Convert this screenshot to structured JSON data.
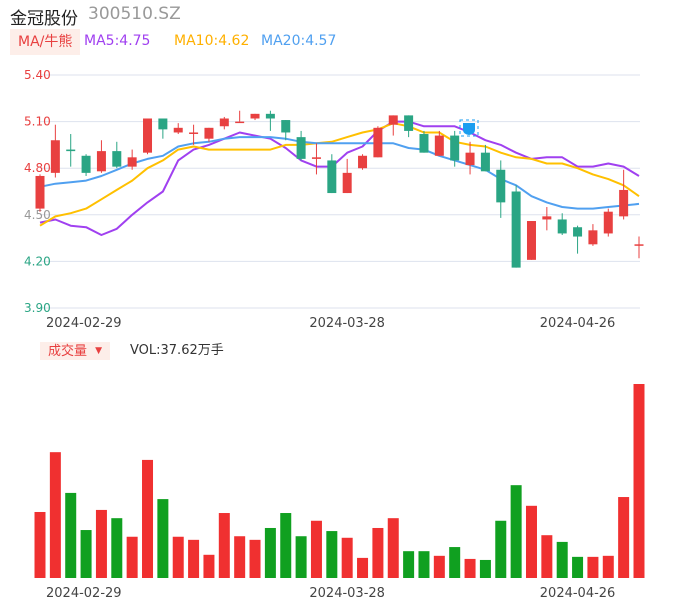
{
  "header": {
    "name": "金冠股份",
    "code": "300510.SZ"
  },
  "ma_legend": {
    "tab": "MA/牛熊",
    "ma5": "MA5:4.75",
    "ma10": "MA10:4.62",
    "ma20": "MA20:4.57"
  },
  "volume_legend": {
    "tab": "成交量",
    "dropdown_icon": "caret-down-icon",
    "vol": "VOL:37.62万手"
  },
  "colors": {
    "up": "#e84040",
    "down": "#2aa584",
    "vol_up": "#f03030",
    "vol_down": "#10a020",
    "ma5": "#a040f0",
    "ma10": "#ffc000",
    "ma20": "#50a0f0",
    "grid": "#dde2ee",
    "badge": "#1a9ef0"
  },
  "chart_data": [
    {
      "type": "candlestick",
      "y_ticks": [
        "5.40",
        "5.10",
        "4.80",
        "4.50",
        "4.20",
        "3.90"
      ],
      "ylim": [
        3.9,
        5.4
      ],
      "x_labels": [
        {
          "index": 0,
          "label": "2024-02-29"
        },
        {
          "index": 20,
          "label": "2024-03-28"
        },
        {
          "index": 35,
          "label": "2024-04-26"
        }
      ],
      "ohlc": [
        [
          4.54,
          4.76,
          4.52,
          4.75
        ],
        [
          4.77,
          5.08,
          4.74,
          4.98
        ],
        [
          4.92,
          5.02,
          4.81,
          4.91
        ],
        [
          4.88,
          4.89,
          4.75,
          4.77
        ],
        [
          4.78,
          4.98,
          4.77,
          4.91
        ],
        [
          4.91,
          4.97,
          4.8,
          4.81
        ],
        [
          4.81,
          4.92,
          4.79,
          4.87
        ],
        [
          4.9,
          5.12,
          4.89,
          5.12
        ],
        [
          5.12,
          5.12,
          4.99,
          5.05
        ],
        [
          5.03,
          5.09,
          5.02,
          5.06
        ],
        [
          5.03,
          5.08,
          4.95,
          5.03
        ],
        [
          4.99,
          5.06,
          4.97,
          5.06
        ],
        [
          5.07,
          5.13,
          5.05,
          5.12
        ],
        [
          5.1,
          5.17,
          5.1,
          5.1
        ],
        [
          5.12,
          5.15,
          5.11,
          5.15
        ],
        [
          5.15,
          5.17,
          5.04,
          5.12
        ],
        [
          5.11,
          5.11,
          4.98,
          5.03
        ],
        [
          5.0,
          5.04,
          4.85,
          4.86
        ],
        [
          4.86,
          4.96,
          4.76,
          4.87
        ],
        [
          4.85,
          4.89,
          4.64,
          4.64
        ],
        [
          4.64,
          4.86,
          4.64,
          4.77
        ],
        [
          4.8,
          4.89,
          4.79,
          4.88
        ],
        [
          4.87,
          5.07,
          4.87,
          5.06
        ],
        [
          5.08,
          5.14,
          5.01,
          5.14
        ],
        [
          5.14,
          5.14,
          5.0,
          5.04
        ],
        [
          5.02,
          5.04,
          4.9,
          4.9
        ],
        [
          4.88,
          5.04,
          4.88,
          5.01
        ],
        [
          5.01,
          5.04,
          4.81,
          4.85
        ],
        [
          4.82,
          4.97,
          4.76,
          4.9
        ],
        [
          4.9,
          4.95,
          4.78,
          4.78
        ],
        [
          4.79,
          4.85,
          4.48,
          4.58
        ],
        [
          4.65,
          4.69,
          4.16,
          4.16
        ],
        [
          4.21,
          4.46,
          4.21,
          4.46
        ],
        [
          4.47,
          4.55,
          4.4,
          4.49
        ],
        [
          4.47,
          4.51,
          4.37,
          4.38
        ],
        [
          4.42,
          4.43,
          4.25,
          4.36
        ],
        [
          4.31,
          4.44,
          4.3,
          4.4
        ],
        [
          4.38,
          4.54,
          4.36,
          4.52
        ],
        [
          4.49,
          4.79,
          4.47,
          4.66
        ],
        [
          4.31,
          4.36,
          4.22,
          4.31
        ]
      ],
      "series": [
        {
          "name": "MA5",
          "values": [
            4.45,
            4.47,
            4.43,
            4.42,
            4.37,
            4.41,
            4.5,
            4.58,
            4.65,
            4.85,
            4.92,
            4.95,
            4.99,
            5.03,
            5.01,
            4.99,
            4.93,
            4.85,
            4.81,
            4.81,
            4.9,
            4.94,
            5.04,
            5.1,
            5.1,
            5.07,
            5.07,
            5.07,
            5.03,
            4.98,
            4.95,
            4.9,
            4.86,
            4.87,
            4.87,
            4.81,
            4.81,
            4.83,
            4.81,
            4.75
          ]
        },
        {
          "name": "MA10",
          "values": [
            4.43,
            4.49,
            4.51,
            4.54,
            4.6,
            4.66,
            4.72,
            4.8,
            4.85,
            4.92,
            4.94,
            4.92,
            4.92,
            4.92,
            4.92,
            4.92,
            4.95,
            4.95,
            4.96,
            4.97,
            5.0,
            5.03,
            5.05,
            5.09,
            5.07,
            5.03,
            5.03,
            4.97,
            4.95,
            4.94,
            4.9,
            4.87,
            4.86,
            4.83,
            4.83,
            4.8,
            4.76,
            4.73,
            4.69,
            4.62
          ]
        },
        {
          "name": "MA20",
          "values": [
            4.68,
            4.7,
            4.71,
            4.72,
            4.75,
            4.79,
            4.83,
            4.86,
            4.88,
            4.94,
            4.96,
            4.97,
            4.99,
            5.0,
            5.0,
            5.0,
            4.99,
            4.97,
            4.96,
            4.96,
            4.96,
            4.96,
            4.96,
            4.96,
            4.93,
            4.92,
            4.88,
            4.85,
            4.82,
            4.79,
            4.73,
            4.69,
            4.62,
            4.58,
            4.55,
            4.54,
            4.54,
            4.55,
            4.56,
            4.57
          ]
        }
      ]
    },
    {
      "type": "bar",
      "unit": "万手",
      "values": [
        12.8,
        24.4,
        16.5,
        9.3,
        13.2,
        11.6,
        8.0,
        22.9,
        15.3,
        8.0,
        7.4,
        4.5,
        12.6,
        8.1,
        7.4,
        9.7,
        12.6,
        8.1,
        11.1,
        9.1,
        7.8,
        3.9,
        9.7,
        11.6,
        5.2,
        5.2,
        4.3,
        6.0,
        3.7,
        3.5,
        11.1,
        18.0,
        14.0,
        8.3,
        7.0,
        4.1,
        4.1,
        4.3,
        15.7,
        37.62
      ],
      "x_labels": [
        {
          "index": 0,
          "label": "2024-02-29"
        },
        {
          "index": 20,
          "label": "2024-03-28"
        },
        {
          "index": 35,
          "label": "2024-04-26"
        }
      ]
    }
  ]
}
